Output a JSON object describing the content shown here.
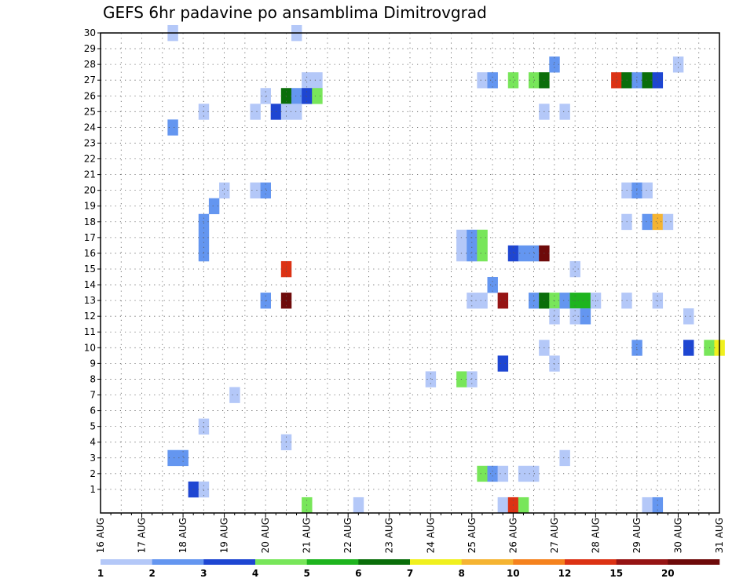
{
  "chart_data": {
    "type": "heatmap",
    "title": "GEFS 6hr padavine po ansamblima Dimitrovgrad",
    "xlabel": "",
    "ylabel": "",
    "x_tick_labels": [
      "16 AUG",
      "17 AUG",
      "18 AUG",
      "19 AUG",
      "20 AUG",
      "21 AUG",
      "22 AUG",
      "23 AUG",
      "24 AUG",
      "25 AUG",
      "26 AUG",
      "27 AUG",
      "28 AUG",
      "29 AUG",
      "30 AUG",
      "31 AUG"
    ],
    "x_range_steps": [
      0,
      60
    ],
    "y_tick_labels": [
      "1",
      "2",
      "3",
      "4",
      "5",
      "6",
      "7",
      "8",
      "9",
      "10",
      "11",
      "12",
      "13",
      "14",
      "15",
      "16",
      "17",
      "18",
      "19",
      "20",
      "21",
      "22",
      "23",
      "24",
      "25",
      "26",
      "27",
      "28",
      "29",
      "30"
    ],
    "y_range": [
      0,
      30
    ],
    "grid": true,
    "colorbar": {
      "labels": [
        "1",
        "2",
        "3",
        "4",
        "5",
        "6",
        "7",
        "8",
        "10",
        "12",
        "15",
        "20"
      ],
      "colors": [
        "#b4c8f8",
        "#6496f0",
        "#1e46d2",
        "#78e65a",
        "#1eb41e",
        "#0a6e0a",
        "#f0f01e",
        "#f5b432",
        "#f5821e",
        "#dc3214",
        "#961414",
        "#6e0a0a"
      ]
    },
    "cells": [
      {
        "member": 30,
        "step": 7,
        "level": 1
      },
      {
        "member": 30,
        "step": 19,
        "level": 1
      },
      {
        "member": 28,
        "step": 56,
        "level": 1
      },
      {
        "member": 28,
        "step": 44,
        "level": 2
      },
      {
        "member": 27,
        "step": 20,
        "level": 1
      },
      {
        "member": 27,
        "step": 21,
        "level": 1
      },
      {
        "member": 27,
        "step": 37,
        "level": 1
      },
      {
        "member": 27,
        "step": 38,
        "level": 2
      },
      {
        "member": 27,
        "step": 40,
        "level": 4
      },
      {
        "member": 27,
        "step": 42,
        "level": 4
      },
      {
        "member": 27,
        "step": 43,
        "level": 6
      },
      {
        "member": 27,
        "step": 50,
        "level": 10
      },
      {
        "member": 27,
        "step": 51,
        "level": 6
      },
      {
        "member": 27,
        "step": 52,
        "level": 2
      },
      {
        "member": 27,
        "step": 53,
        "level": 6
      },
      {
        "member": 27,
        "step": 54,
        "level": 3
      },
      {
        "member": 26,
        "step": 16,
        "level": 1
      },
      {
        "member": 26,
        "step": 18,
        "level": 6
      },
      {
        "member": 26,
        "step": 19,
        "level": 2
      },
      {
        "member": 26,
        "step": 20,
        "level": 3
      },
      {
        "member": 26,
        "step": 21,
        "level": 4
      },
      {
        "member": 25,
        "step": 10,
        "level": 1
      },
      {
        "member": 25,
        "step": 15,
        "level": 1
      },
      {
        "member": 25,
        "step": 17,
        "level": 3
      },
      {
        "member": 25,
        "step": 18,
        "level": 1
      },
      {
        "member": 25,
        "step": 19,
        "level": 1
      },
      {
        "member": 25,
        "step": 43,
        "level": 1
      },
      {
        "member": 25,
        "step": 45,
        "level": 1
      },
      {
        "member": 24,
        "step": 7,
        "level": 2
      },
      {
        "member": 20,
        "step": 12,
        "level": 1
      },
      {
        "member": 20,
        "step": 15,
        "level": 1
      },
      {
        "member": 20,
        "step": 16,
        "level": 2
      },
      {
        "member": 20,
        "step": 51,
        "level": 1
      },
      {
        "member": 20,
        "step": 52,
        "level": 2
      },
      {
        "member": 20,
        "step": 53,
        "level": 1
      },
      {
        "member": 19,
        "step": 11,
        "level": 2
      },
      {
        "member": 18,
        "step": 10,
        "level": 2
      },
      {
        "member": 18,
        "step": 51,
        "level": 1
      },
      {
        "member": 18,
        "step": 53,
        "level": 2
      },
      {
        "member": 18,
        "step": 54,
        "level": 8
      },
      {
        "member": 18,
        "step": 55,
        "level": 1
      },
      {
        "member": 17,
        "step": 10,
        "level": 2
      },
      {
        "member": 17,
        "step": 35,
        "level": 1
      },
      {
        "member": 17,
        "step": 36,
        "level": 2
      },
      {
        "member": 17,
        "step": 37,
        "level": 4
      },
      {
        "member": 16,
        "step": 10,
        "level": 2
      },
      {
        "member": 16,
        "step": 35,
        "level": 1
      },
      {
        "member": 16,
        "step": 36,
        "level": 2
      },
      {
        "member": 16,
        "step": 37,
        "level": 4
      },
      {
        "member": 16,
        "step": 40,
        "level": 3
      },
      {
        "member": 16,
        "step": 41,
        "level": 2
      },
      {
        "member": 16,
        "step": 42,
        "level": 2
      },
      {
        "member": 16,
        "step": 43,
        "level": 12
      },
      {
        "member": 15,
        "step": 18,
        "level": 10
      },
      {
        "member": 15,
        "step": 46,
        "level": 1
      },
      {
        "member": 14,
        "step": 38,
        "level": 2
      },
      {
        "member": 13,
        "step": 16,
        "level": 2
      },
      {
        "member": 13,
        "step": 18,
        "level": 12
      },
      {
        "member": 13,
        "step": 36,
        "level": 1
      },
      {
        "member": 13,
        "step": 37,
        "level": 1
      },
      {
        "member": 13,
        "step": 39,
        "level": 11
      },
      {
        "member": 13,
        "step": 42,
        "level": 2
      },
      {
        "member": 13,
        "step": 43,
        "level": 6
      },
      {
        "member": 13,
        "step": 44,
        "level": 4
      },
      {
        "member": 13,
        "step": 45,
        "level": 2
      },
      {
        "member": 13,
        "step": 46,
        "level": 5
      },
      {
        "member": 13,
        "step": 47,
        "level": 5
      },
      {
        "member": 13,
        "step": 48,
        "level": 1
      },
      {
        "member": 13,
        "step": 51,
        "level": 1
      },
      {
        "member": 13,
        "step": 54,
        "level": 1
      },
      {
        "member": 12,
        "step": 44,
        "level": 1
      },
      {
        "member": 12,
        "step": 46,
        "level": 1
      },
      {
        "member": 12,
        "step": 47,
        "level": 2
      },
      {
        "member": 12,
        "step": 57,
        "level": 1
      },
      {
        "member": 10,
        "step": 43,
        "level": 1
      },
      {
        "member": 10,
        "step": 52,
        "level": 2
      },
      {
        "member": 10,
        "step": 57,
        "level": 3
      },
      {
        "member": 10,
        "step": 59,
        "level": 4
      },
      {
        "member": 10,
        "step": 60,
        "level": 7
      },
      {
        "member": 9,
        "step": 39,
        "level": 3
      },
      {
        "member": 9,
        "step": 44,
        "level": 1
      },
      {
        "member": 8,
        "step": 32,
        "level": 1
      },
      {
        "member": 8,
        "step": 35,
        "level": 4
      },
      {
        "member": 8,
        "step": 36,
        "level": 1
      },
      {
        "member": 7,
        "step": 13,
        "level": 1
      },
      {
        "member": 5,
        "step": 10,
        "level": 1
      },
      {
        "member": 4,
        "step": 18,
        "level": 1
      },
      {
        "member": 3,
        "step": 7,
        "level": 2
      },
      {
        "member": 3,
        "step": 8,
        "level": 2
      },
      {
        "member": 3,
        "step": 45,
        "level": 1
      },
      {
        "member": 2,
        "step": 37,
        "level": 4
      },
      {
        "member": 2,
        "step": 38,
        "level": 2
      },
      {
        "member": 2,
        "step": 39,
        "level": 1
      },
      {
        "member": 2,
        "step": 41,
        "level": 1
      },
      {
        "member": 2,
        "step": 42,
        "level": 1
      },
      {
        "member": 1,
        "step": 9,
        "level": 3
      },
      {
        "member": 1,
        "step": 10,
        "level": 1
      },
      {
        "member": 0,
        "step": 20,
        "level": 4
      },
      {
        "member": 0,
        "step": 25,
        "level": 1
      },
      {
        "member": 0,
        "step": 39,
        "level": 1
      },
      {
        "member": 0,
        "step": 40,
        "level": 10
      },
      {
        "member": 0,
        "step": 41,
        "level": 4
      },
      {
        "member": 0,
        "step": 53,
        "level": 1
      },
      {
        "member": 0,
        "step": 54,
        "level": 2
      }
    ]
  }
}
